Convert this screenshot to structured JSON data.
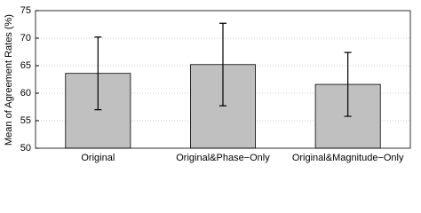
{
  "chart_data": {
    "type": "bar",
    "y_label": "Mean of Agreement Rates (%)",
    "categories": [
      "Original",
      "Original&Phase−Only",
      "Original&Magnitude−Only"
    ],
    "values": [
      63.6,
      65.2,
      61.6
    ],
    "errors": [
      6.6,
      7.5,
      5.8
    ],
    "color": "#c0c0c0",
    "ylim": [
      50,
      75
    ],
    "yticks": [
      50,
      55,
      60,
      65,
      70,
      75
    ],
    "grid": true
  }
}
